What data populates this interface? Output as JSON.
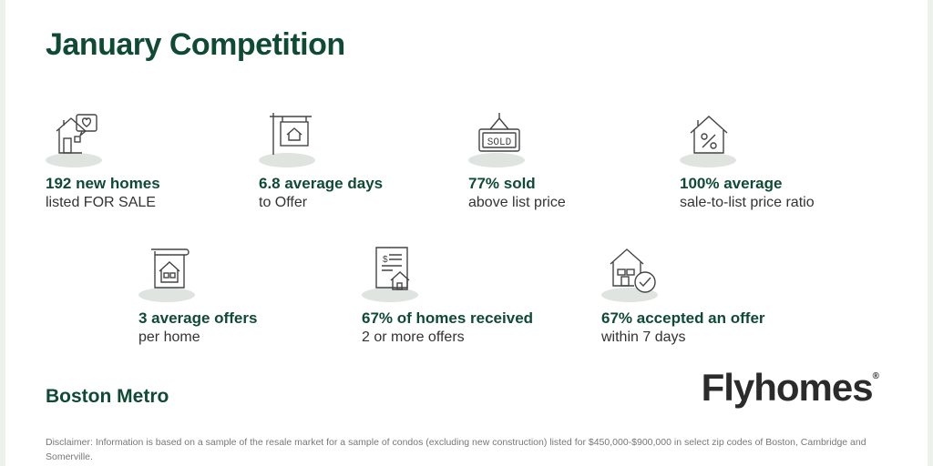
{
  "title": "January Competition",
  "region": "Boston Metro",
  "brand": {
    "name": "Flyhomes",
    "mark": "®"
  },
  "disclaimer": "Disclaimer: Information is based on a sample of the resale market for a sample of condos (excluding new construction) listed for $450,000-$900,000 in select zip codes of Boston, Cambridge and Somerville.",
  "stats": [
    {
      "icon": "house-heart-icon",
      "line1": "192 new homes",
      "line2": "listed FOR SALE"
    },
    {
      "icon": "house-sign-icon",
      "line1": "6.8 average days",
      "line2": "to Offer"
    },
    {
      "icon": "sold-sign-icon",
      "line1": "77% sold",
      "line2": "above list price"
    },
    {
      "icon": "house-percent-icon",
      "line1": "100% average",
      "line2": "sale-to-list price ratio"
    },
    {
      "icon": "house-document-icon",
      "line1": "3  average offers",
      "line2": "per home"
    },
    {
      "icon": "offer-receipt-icon",
      "line1": "67% of homes received",
      "line2": "2 or more offers"
    },
    {
      "icon": "house-check-icon",
      "line1": "67% accepted an offer",
      "line2": "within 7 days"
    }
  ],
  "sold_sign_text": "SOLD",
  "colors": {
    "accent": "#0f4a34",
    "text": "#333333",
    "shadow": "#dfe4e0"
  }
}
